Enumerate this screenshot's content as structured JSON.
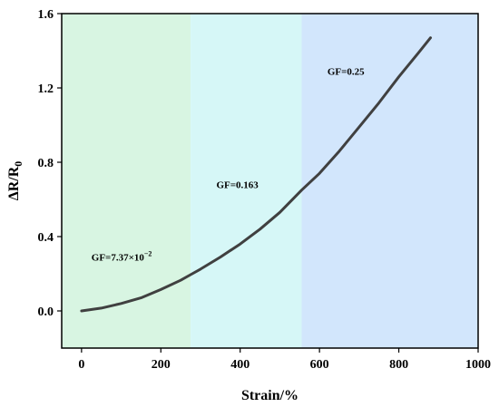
{
  "chart_data": {
    "type": "line",
    "title": "",
    "xlabel": "Strain/%",
    "ylabel": {
      "main": "ΔR/R",
      "sub": "0"
    },
    "xlim": [
      -50,
      1000
    ],
    "ylim": [
      -0.2,
      1.6
    ],
    "xticks": [
      0,
      200,
      400,
      600,
      800,
      1000
    ],
    "yticks": [
      0.0,
      0.4,
      0.8,
      1.2,
      1.6
    ],
    "xtick_labels": [
      "0",
      "200",
      "400",
      "600",
      "800",
      "1000"
    ],
    "ytick_labels": [
      "0.0",
      "0.4",
      "0.8",
      "1.2",
      "1.6"
    ],
    "grid": false,
    "regions": [
      {
        "x_start": -50,
        "x_end": 275,
        "color": "#d8f5e2"
      },
      {
        "x_start": 275,
        "x_end": 555,
        "color": "#d6f7f7"
      },
      {
        "x_start": 555,
        "x_end": 1000,
        "color": "#d2e6fc"
      }
    ],
    "annotations": [
      {
        "text": "GF=7.37×10",
        "sup": "−2",
        "x": 25,
        "y": 0.27
      },
      {
        "text": "GF=0.163",
        "sup": "",
        "x": 340,
        "y": 0.66
      },
      {
        "text": "GF=0.25",
        "sup": "",
        "x": 620,
        "y": 1.27
      }
    ],
    "series": [
      {
        "color": "#404040",
        "x": [
          0,
          50,
          100,
          150,
          200,
          250,
          275,
          300,
          350,
          400,
          450,
          500,
          555,
          600,
          650,
          700,
          750,
          800,
          850,
          880
        ],
        "y": [
          0.0,
          0.015,
          0.04,
          0.07,
          0.115,
          0.165,
          0.195,
          0.225,
          0.29,
          0.36,
          0.44,
          0.53,
          0.65,
          0.74,
          0.86,
          0.99,
          1.12,
          1.26,
          1.39,
          1.47
        ]
      }
    ]
  }
}
